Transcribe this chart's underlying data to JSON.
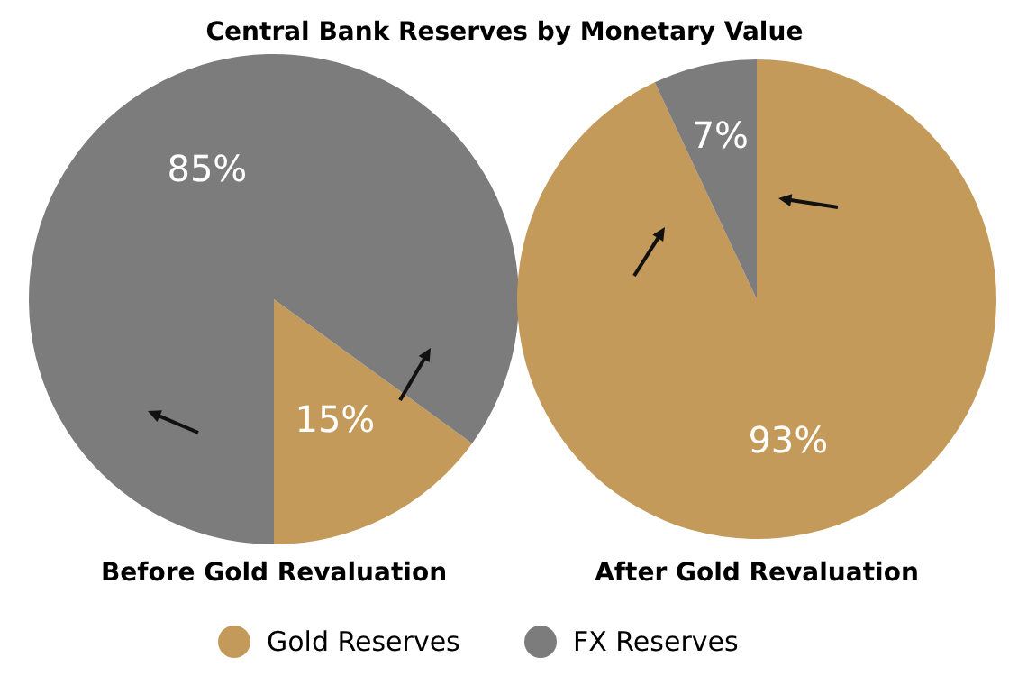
{
  "chart_data": [
    {
      "type": "pie",
      "title": "Central Bank Reserves by Monetary Value",
      "xlabel": "Before Gold Revaluation",
      "categories": [
        null,
        null
      ],
      "values": [
        15,
        85
      ],
      "colors": [
        "#c49a5a",
        "#7c7c7c"
      ],
      "value_labels": [
        "15%",
        "85%"
      ]
    },
    {
      "type": "pie",
      "xlabel": "After Gold Revaluation",
      "categories": [
        "Gold Reserves",
        "FX Reserves"
      ],
      "values": [
        93,
        7
      ],
      "colors": [
        "#c49a5a",
        "#7c7c7c"
      ],
      "value_labels": [
        "93%",
        "7%"
      ],
      "legend": "bottom"
    }
  ]
}
